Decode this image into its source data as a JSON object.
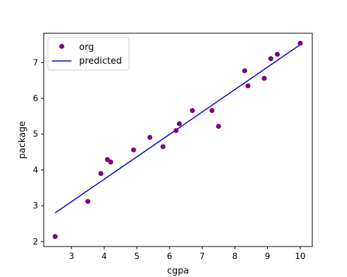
{
  "chart_data": {
    "type": "scatter",
    "xlabel": "cgpa",
    "ylabel": "package",
    "xlim": [
      2.15,
      10.37
    ],
    "ylim": [
      1.86,
      7.82
    ],
    "xticks": [
      3,
      4,
      5,
      6,
      7,
      8,
      9,
      10
    ],
    "yticks": [
      2,
      3,
      4,
      5,
      6,
      7
    ],
    "grid": false,
    "legend_position": "top-left",
    "series": [
      {
        "name": "org",
        "kind": "scatter",
        "color": "#800080",
        "points": [
          {
            "x": 2.5,
            "y": 2.14
          },
          {
            "x": 3.5,
            "y": 3.12
          },
          {
            "x": 3.9,
            "y": 3.9
          },
          {
            "x": 4.1,
            "y": 4.29
          },
          {
            "x": 4.2,
            "y": 4.22
          },
          {
            "x": 4.9,
            "y": 4.56
          },
          {
            "x": 5.4,
            "y": 4.91
          },
          {
            "x": 5.8,
            "y": 4.65
          },
          {
            "x": 6.2,
            "y": 5.1
          },
          {
            "x": 6.3,
            "y": 5.29
          },
          {
            "x": 6.7,
            "y": 5.66
          },
          {
            "x": 7.3,
            "y": 5.66
          },
          {
            "x": 7.5,
            "y": 5.22
          },
          {
            "x": 8.3,
            "y": 6.77
          },
          {
            "x": 8.4,
            "y": 6.35
          },
          {
            "x": 8.9,
            "y": 6.56
          },
          {
            "x": 9.1,
            "y": 7.11
          },
          {
            "x": 9.3,
            "y": 7.23
          },
          {
            "x": 10.0,
            "y": 7.54
          }
        ]
      },
      {
        "name": "predicted",
        "kind": "line",
        "color": "#0000cd",
        "points": [
          {
            "x": 2.5,
            "y": 2.8
          },
          {
            "x": 10.0,
            "y": 7.5
          }
        ]
      }
    ]
  }
}
